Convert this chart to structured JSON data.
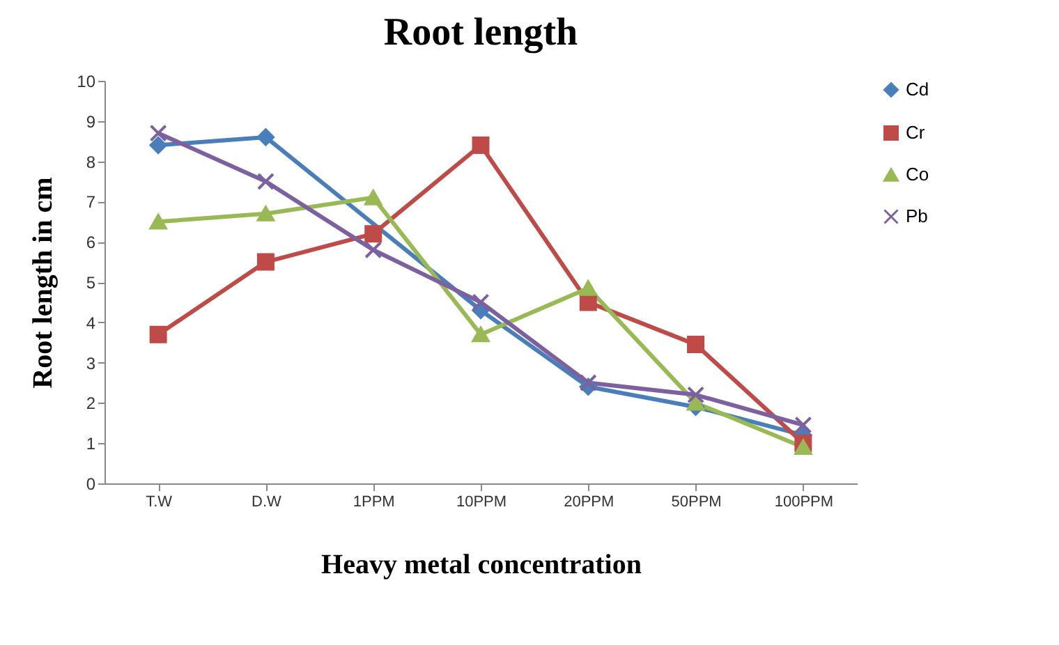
{
  "chart_data": {
    "type": "line",
    "title": "Root length",
    "xlabel": "Heavy metal concentration",
    "ylabel": "Root length in cm",
    "categories": [
      "T.W",
      "D.W",
      "1PPM",
      "10PPM",
      "20PPM",
      "50PPM",
      "100PPM"
    ],
    "series": [
      {
        "name": "Cd",
        "color": "#4a7ebb",
        "marker": "diamond",
        "values": [
          8.4,
          8.6,
          null,
          4.3,
          2.4,
          1.9,
          1.2
        ]
      },
      {
        "name": "Cr",
        "color": "#be4b48",
        "marker": "square",
        "values": [
          3.7,
          5.5,
          6.2,
          8.4,
          4.5,
          3.45,
          1.0
        ]
      },
      {
        "name": "Co",
        "color": "#98b954",
        "marker": "triangle",
        "values": [
          6.5,
          6.7,
          7.1,
          3.7,
          4.85,
          2.0,
          0.9
        ]
      },
      {
        "name": "Pb",
        "color": "#7d60a0",
        "marker": "cross",
        "values": [
          8.7,
          7.5,
          5.8,
          4.5,
          2.5,
          2.2,
          1.45
        ]
      }
    ],
    "ylim": [
      0,
      10
    ],
    "yticks": [
      0,
      1,
      2,
      3,
      4,
      5,
      6,
      7,
      8,
      9,
      10
    ],
    "grid": false,
    "legend": "right",
    "line_style": "solid"
  }
}
